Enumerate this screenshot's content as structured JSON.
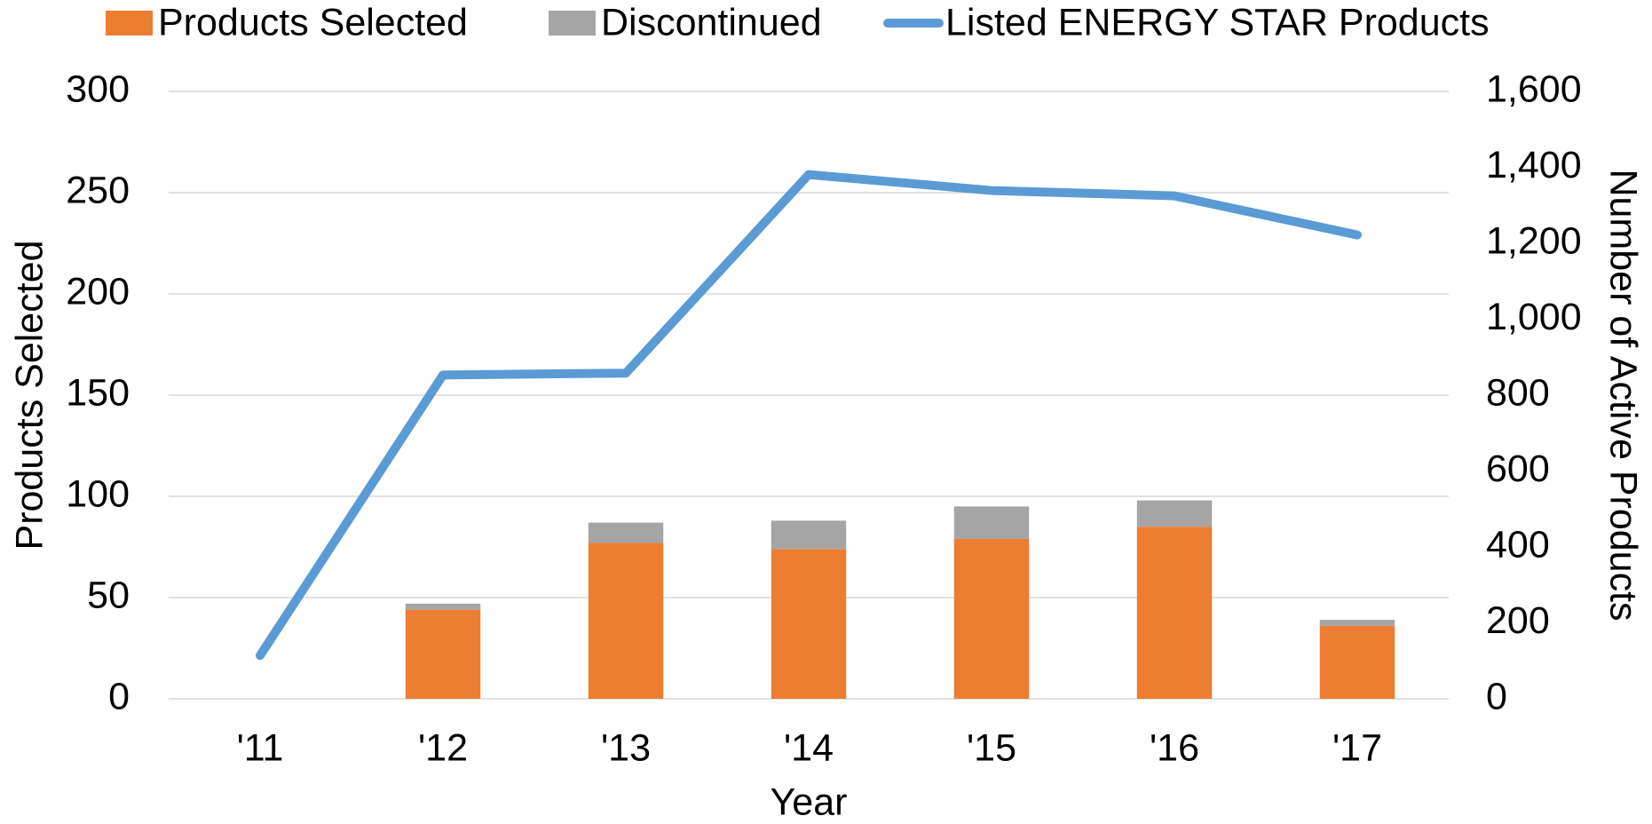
{
  "chart_data": {
    "type": "bar",
    "stacked": true,
    "x_label": "Year",
    "y_label": "Products Selected",
    "y2_label": "Number of Active Products",
    "categories": [
      "'11",
      "'12",
      "'13",
      "'14",
      "'15",
      "'16",
      "'17"
    ],
    "series": [
      {
        "name": "Products Selected",
        "type": "bar",
        "color": "#ed7d31",
        "values": [
          0,
          44,
          77,
          74,
          79,
          85,
          36
        ]
      },
      {
        "name": "Discontinued",
        "type": "bar",
        "color": "#a5a5a5",
        "values": [
          0,
          3,
          10,
          14,
          16,
          13,
          3
        ]
      },
      {
        "name": "Listed ENERGY STAR Products",
        "type": "line",
        "axis": "y2",
        "color": "#5b9bd5",
        "values": [
          114,
          853,
          858,
          1381,
          1339,
          1325,
          1222
        ]
      }
    ],
    "ylim": [
      0,
      300
    ],
    "yticks": [
      0,
      50,
      100,
      150,
      200,
      250,
      300
    ],
    "y2lim": [
      0,
      1600
    ],
    "y2ticks": [
      0,
      200,
      400,
      600,
      800,
      {
        "value": 1000,
        "label": "1,000"
      },
      {
        "value": 1200,
        "label": "1,200"
      },
      {
        "value": 1400,
        "label": "1,400"
      },
      {
        "value": 1600,
        "label": "1,600"
      }
    ],
    "grid": true,
    "legend": "top"
  }
}
